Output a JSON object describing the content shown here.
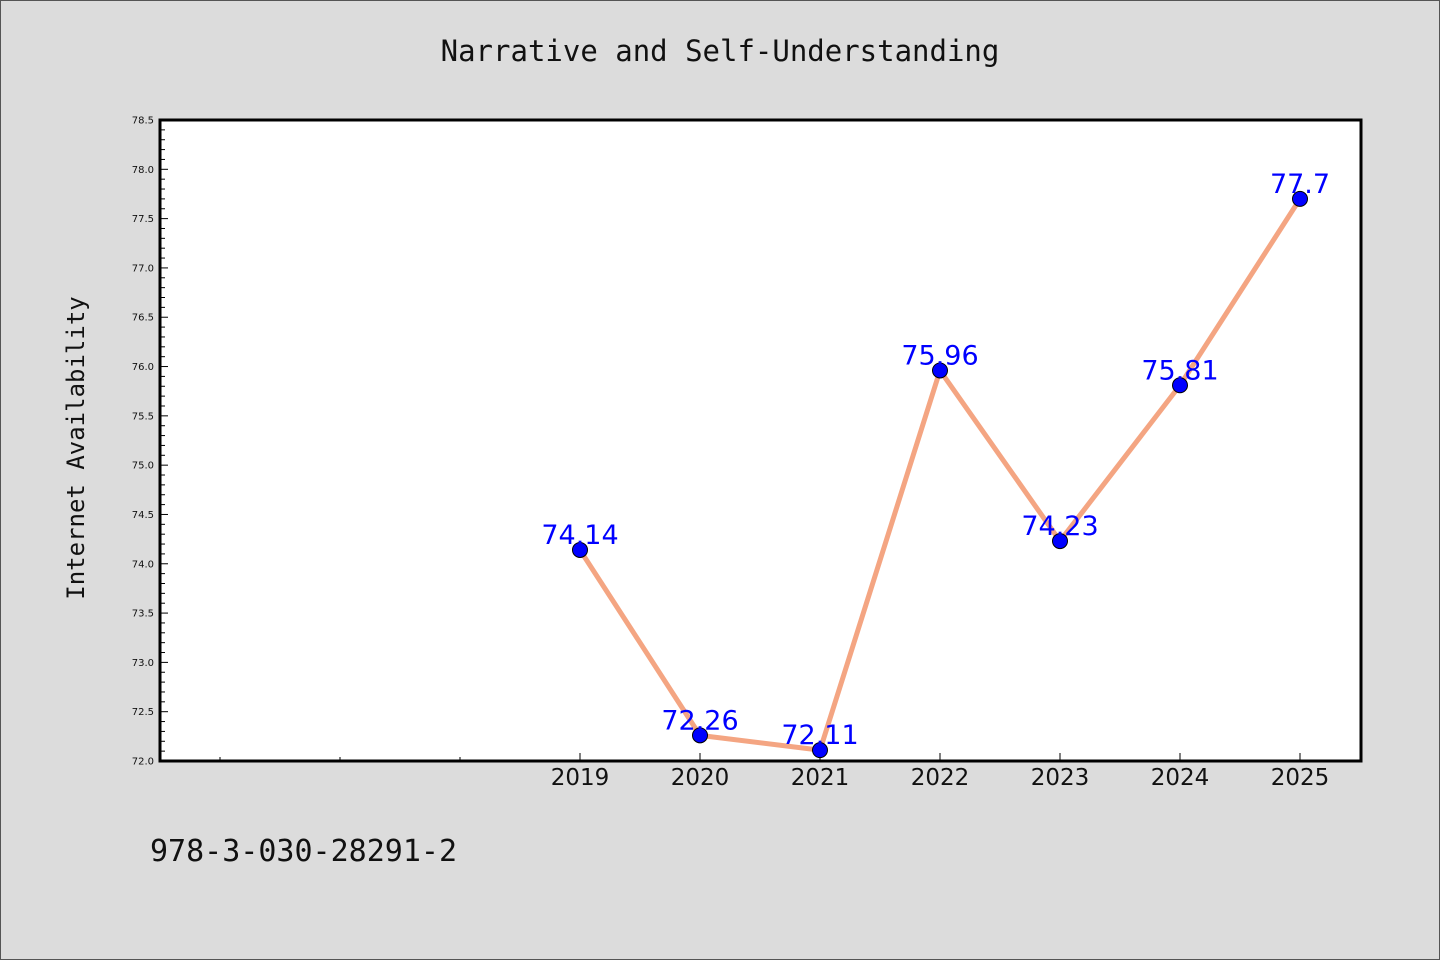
{
  "chart_data": {
    "type": "line",
    "title": "Narrative and Self-Understanding",
    "xlabel": "",
    "ylabel": "Internet Availability",
    "x": [
      "2019",
      "2020",
      "2021",
      "2022",
      "2023",
      "2024",
      "2025"
    ],
    "y": [
      74.14,
      72.26,
      72.11,
      75.96,
      74.23,
      75.81,
      77.7
    ],
    "data_labels": [
      "74.14",
      "72.26",
      "72.11",
      "75.96",
      "74.23",
      "75.81",
      "77.7"
    ],
    "ylim": [
      72.0,
      78.5
    ],
    "yticks": [
      "72.0",
      "72.5",
      "73.0",
      "73.5",
      "74.0",
      "74.5",
      "75.0",
      "75.5",
      "76.0",
      "76.5",
      "77.0",
      "77.5",
      "78.0",
      "78.5"
    ],
    "grid": false,
    "line_color": "#f4a582",
    "marker_color": "#0000ff",
    "plot_background": "#ffffff",
    "figure_background": "#dcdcdc"
  },
  "footer_text": "978-3-030-28291-2"
}
